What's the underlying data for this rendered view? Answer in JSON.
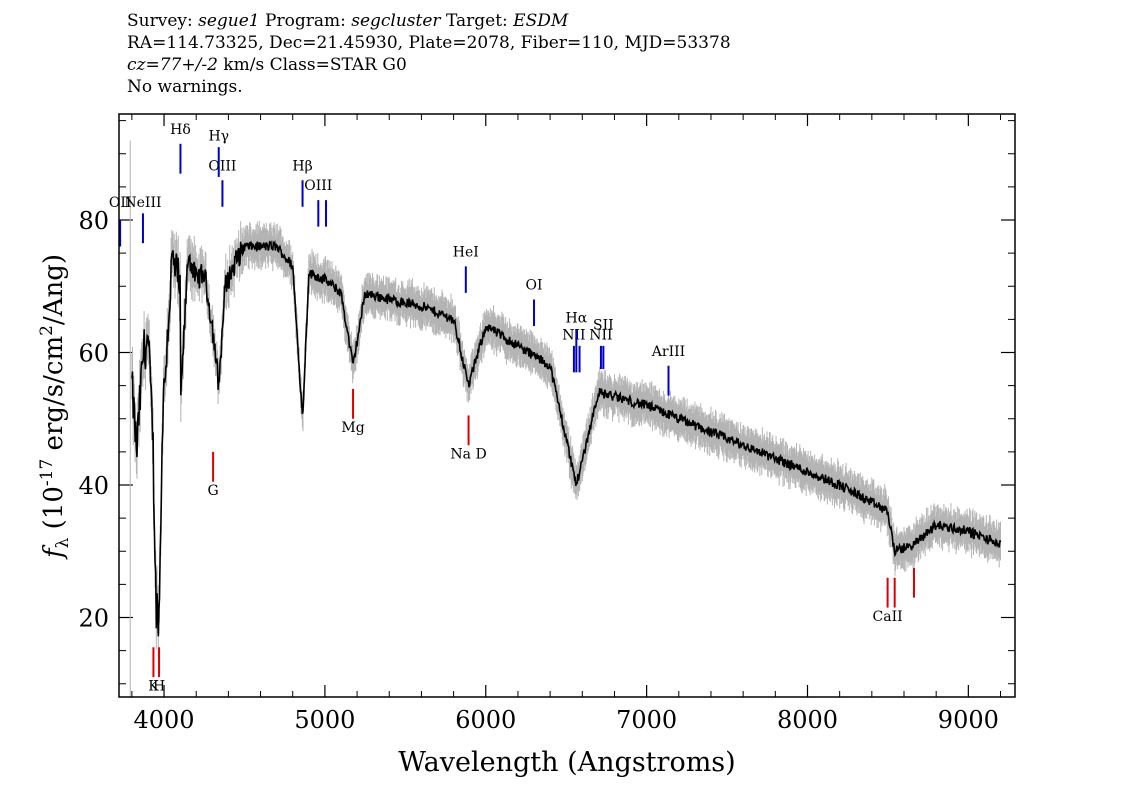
{
  "header": {
    "survey_label": "Survey:",
    "survey": "segue1",
    "program_label": "Program:",
    "program": "segcluster",
    "target_label": "Target:",
    "target": "ESDM",
    "line2": "RA=114.73325, Dec=21.45930, Plate=2078, Fiber=110, MJD=53378",
    "cz": "cz=77+/-2",
    "cz_unit_class": "km/s Class=STAR G0",
    "line4": "No warnings."
  },
  "chart_data": {
    "type": "line",
    "xlabel": "Wavelength (Angstroms)",
    "ylabel_main": "f",
    "ylabel_sub": "λ",
    "ylabel_rest": " (10",
    "ylabel_exp": "-17",
    "ylabel_unit": " erg/s/cm",
    "ylabel_exp2": "2",
    "ylabel_end": "/Ang)",
    "xlim": [
      3720,
      9290
    ],
    "ylim": [
      8,
      96
    ],
    "x_ticks": [
      4000,
      5000,
      6000,
      7000,
      8000,
      9000
    ],
    "y_ticks": [
      20,
      40,
      60,
      80
    ],
    "x_tick_labels": [
      "4000",
      "5000",
      "6000",
      "7000",
      "8000",
      "9000"
    ],
    "y_tick_labels": [
      "20",
      "40",
      "60",
      "80"
    ],
    "colors": {
      "flux": "#000000",
      "error": "#b4b4b4",
      "emission": "#0000cc",
      "absorption": "#dd0000"
    },
    "spectrum_anchors": [
      [
        3800,
        55
      ],
      [
        3830,
        45
      ],
      [
        3870,
        60
      ],
      [
        3900,
        62
      ],
      [
        3930,
        48
      ],
      [
        3950,
        22
      ],
      [
        3970,
        20
      ],
      [
        3990,
        50
      ],
      [
        4050,
        74
      ],
      [
        4100,
        70
      ],
      [
        4102,
        52
      ],
      [
        4150,
        75
      ],
      [
        4200,
        71
      ],
      [
        4250,
        72
      ],
      [
        4300,
        64
      ],
      [
        4340,
        55
      ],
      [
        4380,
        70
      ],
      [
        4450,
        74
      ],
      [
        4500,
        76
      ],
      [
        4600,
        76
      ],
      [
        4700,
        76
      ],
      [
        4800,
        73
      ],
      [
        4861,
        50
      ],
      [
        4900,
        72
      ],
      [
        5000,
        71
      ],
      [
        5100,
        69
      ],
      [
        5175,
        58
      ],
      [
        5250,
        69
      ],
      [
        5400,
        68
      ],
      [
        5600,
        67
      ],
      [
        5800,
        65
      ],
      [
        5893,
        55
      ],
      [
        6000,
        64
      ],
      [
        6200,
        61
      ],
      [
        6400,
        58
      ],
      [
        6563,
        40
      ],
      [
        6700,
        54
      ],
      [
        7000,
        52
      ],
      [
        7400,
        48
      ],
      [
        7800,
        44
      ],
      [
        8200,
        40
      ],
      [
        8498,
        36
      ],
      [
        8542,
        30
      ],
      [
        8662,
        31
      ],
      [
        8800,
        34
      ],
      [
        9000,
        33
      ],
      [
        9200,
        31
      ]
    ],
    "emission_lines": [
      {
        "label": "OII",
        "x": 3727,
        "y0": 76,
        "y1": 80,
        "label_y": 82
      },
      {
        "label": "NeIII",
        "x": 3869,
        "y0": 76.5,
        "y1": 81,
        "label_y": 82
      },
      {
        "label": "Hδ",
        "x": 4102,
        "y0": 87,
        "y1": 91.5,
        "label_y": 93
      },
      {
        "label": "Hγ",
        "x": 4340,
        "y0": 86.5,
        "y1": 91,
        "label_y": 92
      },
      {
        "label": "OIII",
        "x": 4363,
        "y0": 82,
        "y1": 86,
        "label_y": 87.5
      },
      {
        "label": "Hβ",
        "x": 4861,
        "y0": 82,
        "y1": 86,
        "label_y": 87.5
      },
      {
        "label": "OIII",
        "x": 4959,
        "y0": 79,
        "y1": 83,
        "label_y": 84.5
      },
      {
        "label": "",
        "x": 5007,
        "y0": 79,
        "y1": 83
      },
      {
        "label": "HeI",
        "x": 5876,
        "y0": 69,
        "y1": 73,
        "label_y": 74.5
      },
      {
        "label": "OI",
        "x": 6300,
        "y0": 64,
        "y1": 68,
        "label_y": 69.5
      },
      {
        "label": "NII",
        "x": 6548,
        "y0": 57,
        "y1": 61,
        "label_y": 62
      },
      {
        "label": "Hα",
        "x": 6563,
        "y0": 57,
        "y1": 63.5,
        "label_y": 64.5
      },
      {
        "label": "",
        "x": 6583,
        "y0": 57,
        "y1": 61
      },
      {
        "label": "NII",
        "x": 6716,
        "y0": 57.5,
        "y1": 61,
        "label_y": 62
      },
      {
        "label": "SII",
        "x": 6731,
        "y0": 57.5,
        "y1": 61,
        "label_y": 63.5
      },
      {
        "label": "ArIII",
        "x": 7136,
        "y0": 53.5,
        "y1": 58,
        "label_y": 59.5
      }
    ],
    "absorption_lines": [
      {
        "label": "K",
        "x": 3934,
        "y0": 11,
        "y1": 15.5,
        "label_y": 9
      },
      {
        "label": "H",
        "x": 3969,
        "y0": 11,
        "y1": 15.5,
        "label_y": 9
      },
      {
        "label": "G",
        "x": 4305,
        "y0": 40.5,
        "y1": 45,
        "label_y": 38.5
      },
      {
        "label": "Mg",
        "x": 5175,
        "y0": 50,
        "y1": 54.5,
        "label_y": 48
      },
      {
        "label": "Na D",
        "x": 5893,
        "y0": 46,
        "y1": 50.5,
        "label_y": 44
      },
      {
        "label": "CaII",
        "x": 8498,
        "y0": 21.5,
        "y1": 26,
        "label_y": 19.5
      },
      {
        "label": "",
        "x": 8542,
        "y0": 21.5,
        "y1": 26
      },
      {
        "label": "",
        "x": 8662,
        "y0": 23,
        "y1": 27.5
      }
    ]
  }
}
